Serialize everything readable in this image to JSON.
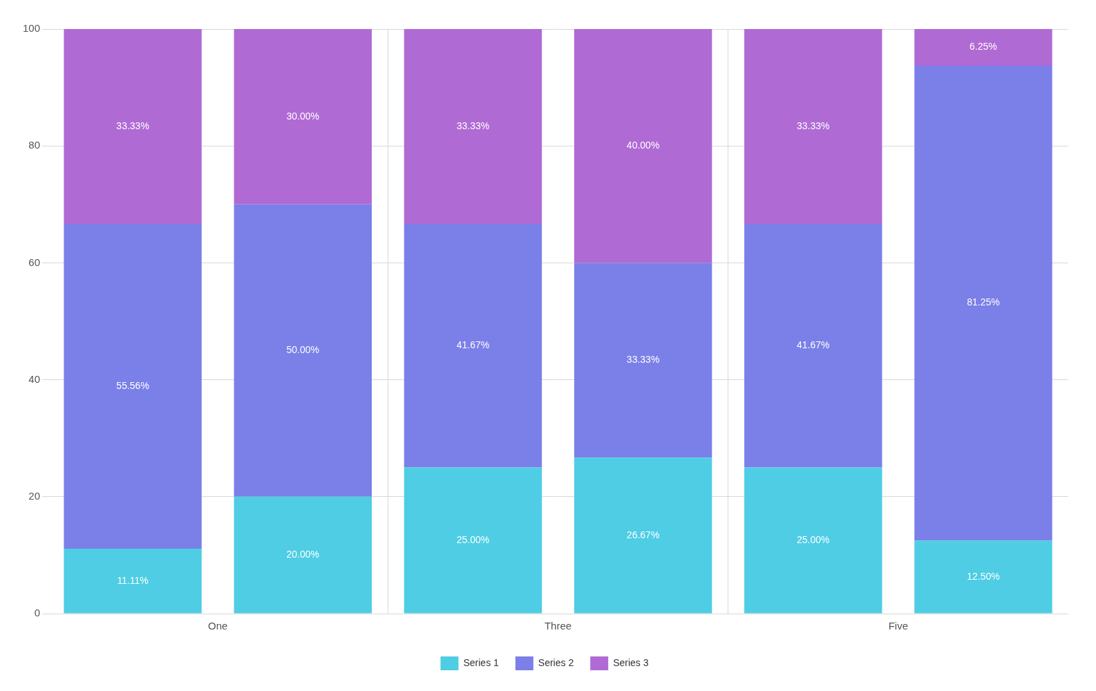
{
  "chart_data": {
    "type": "bar",
    "stacked": true,
    "categories": [
      "One",
      null,
      "Three",
      null,
      "Five",
      null
    ],
    "series": [
      {
        "name": "Series 1",
        "color": "#4ECDE4",
        "values": [
          11.11,
          20.0,
          25.0,
          26.67,
          25.0,
          12.5
        ],
        "value_labels": [
          "11.11%",
          "20.00%",
          "25.00%",
          "26.67%",
          "25.00%",
          "12.50%"
        ]
      },
      {
        "name": "Series 2",
        "color": "#7B7FE8",
        "values": [
          55.56,
          50.0,
          41.67,
          33.33,
          41.67,
          81.25
        ],
        "value_labels": [
          "55.56%",
          "50.00%",
          "41.67%",
          "33.33%",
          "41.67%",
          "81.25%"
        ]
      },
      {
        "name": "Series 3",
        "color": "#B06AD4",
        "values": [
          33.33,
          30.0,
          33.33,
          40.0,
          33.33,
          6.25
        ],
        "value_labels": [
          "33.33%",
          "30.00%",
          "33.33%",
          "40.00%",
          "33.33%",
          "6.25%"
        ]
      }
    ],
    "ylim": [
      0,
      100
    ],
    "yticks": [
      0,
      20,
      40,
      60,
      80,
      100
    ],
    "grid": true,
    "legend": "bottom",
    "data_labels": true
  }
}
